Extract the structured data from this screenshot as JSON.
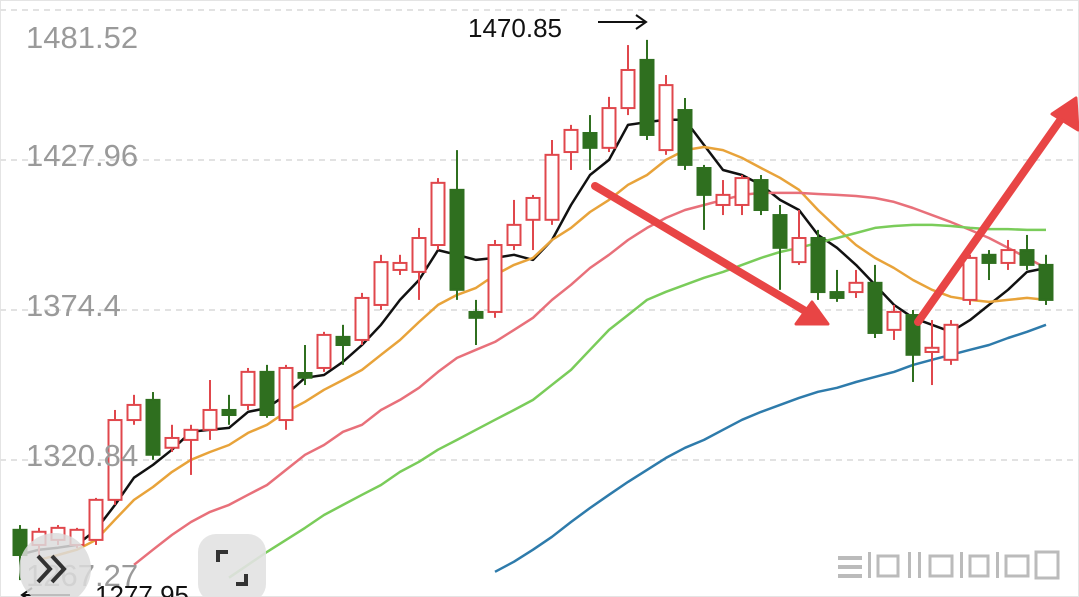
{
  "chart_data": {
    "type": "candlestick",
    "ylim": [
      1267.27,
      1481.52
    ],
    "yticks": [
      1481.52,
      1427.96,
      1374.4,
      1320.84,
      1267.27
    ],
    "grid": true,
    "series": [
      {
        "up_color": "#e0474c",
        "down_color": "#2f6f1f",
        "open": [
          1295.9,
          1290.5,
          1292.3,
          1290.5,
          1292.3,
          1306.6,
          1335.1,
          1342.3,
          1325.2,
          1328.0,
          1331.6,
          1338.7,
          1340.5,
          1352.3,
          1335.1,
          1351.9,
          1353.7,
          1364.8,
          1363.7,
          1376.2,
          1388.7,
          1388.0,
          1397.6,
          1417.3,
          1373.7,
          1373.7,
          1397.6,
          1406.6,
          1406.6,
          1430.8,
          1437.6,
          1432.3,
          1446.5,
          1463.7,
          1431.5,
          1445.8,
          1425.1,
          1411.9,
          1411.9,
          1420.8,
          1408.3,
          1391.5,
          1400.1,
          1380.8,
          1380.8,
          1384.1,
          1367.3,
          1372.6,
          1359.4,
          1356.6,
          1378.0,
          1394.1,
          1391.2,
          1395.8,
          1390.5
        ],
        "high": [
          1297.6,
          1296.6,
          1297.6,
          1296.6,
          1307.3,
          1338.7,
          1344.1,
          1345.1,
          1333.4,
          1333.4,
          1349.4,
          1344.1,
          1353.7,
          1354.8,
          1354.8,
          1361.9,
          1366.6,
          1369.1,
          1380.5,
          1394.1,
          1394.1,
          1403.7,
          1421.5,
          1431.5,
          1378.0,
          1399.4,
          1413.7,
          1415.5,
          1435.1,
          1440.5,
          1444.0,
          1450.5,
          1469.0,
          1470.85,
          1458.3,
          1450.1,
          1426.2,
          1420.8,
          1422.6,
          1422.6,
          1411.9,
          1410.1,
          1403.0,
          1388.7,
          1388.7,
          1390.5,
          1376.2,
          1374.4,
          1370.8,
          1370.8,
          1394.1,
          1395.8,
          1399.4,
          1401.2,
          1394.1
        ],
        "low": [
          1277.95,
          1285.2,
          1290.5,
          1289.4,
          1290.5,
          1304.8,
          1333.4,
          1320.9,
          1323.7,
          1315.5,
          1328.0,
          1333.4,
          1338.7,
          1335.9,
          1331.6,
          1347.6,
          1352.3,
          1354.8,
          1361.9,
          1374.4,
          1386.9,
          1378.0,
          1395.8,
          1378.0,
          1361.9,
          1371.6,
          1395.8,
          1395.8,
          1404.8,
          1424.4,
          1424.4,
          1430.8,
          1444.0,
          1435.1,
          1429.8,
          1424.4,
          1403.0,
          1408.3,
          1408.3,
          1408.3,
          1381.6,
          1390.5,
          1378.0,
          1377.3,
          1378.7,
          1364.4,
          1363.7,
          1348.7,
          1347.6,
          1354.8,
          1376.2,
          1385.1,
          1388.7,
          1388.7,
          1376.2
        ],
        "close": [
          1286.9,
          1295.2,
          1296.6,
          1295.9,
          1306.6,
          1335.1,
          1340.5,
          1322.7,
          1328.7,
          1331.6,
          1338.7,
          1336.9,
          1352.3,
          1336.9,
          1353.7,
          1350.2,
          1365.5,
          1361.9,
          1378.7,
          1391.5,
          1391.2,
          1400.1,
          1419.8,
          1381.6,
          1371.6,
          1397.6,
          1404.8,
          1414.4,
          1429.8,
          1438.7,
          1432.3,
          1446.5,
          1460.1,
          1436.9,
          1454.7,
          1426.2,
          1415.5,
          1415.5,
          1421.5,
          1410.1,
          1396.6,
          1400.1,
          1380.8,
          1378.7,
          1384.1,
          1366.2,
          1373.7,
          1358.4,
          1360.9,
          1369.1,
          1393.0,
          1391.2,
          1395.8,
          1390.5,
          1378.0
        ]
      }
    ],
    "lines": [
      {
        "color": "#111111",
        "values": [
          1287.0,
          1288.8,
          1289.5,
          1290.5,
          1295.9,
          1304.8,
          1314.5,
          1319.1,
          1324.5,
          1330.9,
          1331.6,
          1332.3,
          1338.0,
          1339.4,
          1344.1,
          1350.2,
          1351.2,
          1355.9,
          1361.9,
          1369.1,
          1378.0,
          1385.1,
          1395.8,
          1394.1,
          1392.3,
          1393.0,
          1394.1,
          1392.3,
          1399.4,
          1411.9,
          1422.6,
          1428.0,
          1440.5,
          1441.5,
          1442.3,
          1442.3,
          1433.3,
          1424.4,
          1422.6,
          1419.1,
          1413.7,
          1410.1,
          1401.2,
          1396.6,
          1390.5,
          1383.4,
          1376.2,
          1371.6,
          1369.1,
          1366.6,
          1370.8,
          1376.2,
          1381.6,
          1388.0,
          1389.4
        ]
      },
      {
        "color": "#e8a33a",
        "values": [
          null,
          1285.2,
          1286.9,
          1288.8,
          1292.3,
          1299.5,
          1306.6,
          1311.2,
          1316.6,
          1320.9,
          1323.7,
          1326.2,
          1330.5,
          1333.4,
          1338.0,
          1341.6,
          1345.9,
          1349.4,
          1353.0,
          1358.4,
          1363.7,
          1370.1,
          1376.2,
          1379.8,
          1382.3,
          1386.9,
          1390.5,
          1393.0,
          1399.4,
          1403.7,
          1409.4,
          1413.7,
          1419.1,
          1422.6,
          1428.0,
          1431.5,
          1432.6,
          1431.5,
          1428.7,
          1425.1,
          1421.6,
          1417.3,
          1410.1,
          1403.7,
          1397.6,
          1393.0,
          1389.4,
          1385.1,
          1381.6,
          1379.1,
          1378.0,
          1377.3,
          1378.0,
          1378.7,
          1378.0
        ]
      },
      {
        "color": "#e8707a",
        "values": [
          null,
          null,
          null,
          null,
          null,
          null,
          1283.4,
          1288.8,
          1294.1,
          1298.7,
          1302.3,
          1304.8,
          1308.4,
          1311.9,
          1317.3,
          1322.7,
          1326.2,
          1330.9,
          1333.4,
          1338.7,
          1342.3,
          1346.6,
          1352.3,
          1357.3,
          1360.2,
          1363.0,
          1367.3,
          1371.6,
          1378.0,
          1383.4,
          1389.4,
          1394.1,
          1399.4,
          1403.7,
          1407.3,
          1410.1,
          1411.9,
          1413.7,
          1415.5,
          1416.2,
          1416.2,
          1416.2,
          1415.8,
          1415.5,
          1415.1,
          1414.4,
          1413.0,
          1410.8,
          1408.3,
          1405.8,
          1403.0,
          1400.1,
          1396.6,
          1393.0,
          1389.4
        ]
      },
      {
        "color": "#7acc5a",
        "values": [
          null,
          null,
          null,
          null,
          null,
          null,
          null,
          null,
          null,
          null,
          null,
          1278.8,
          1283.4,
          1288.0,
          1292.3,
          1296.6,
          1301.2,
          1304.8,
          1308.4,
          1311.9,
          1316.6,
          1320.2,
          1324.5,
          1328.0,
          1331.6,
          1335.2,
          1338.7,
          1342.3,
          1347.7,
          1353.0,
          1360.2,
          1367.3,
          1372.6,
          1378.0,
          1380.9,
          1383.4,
          1385.9,
          1388.0,
          1390.5,
          1393.0,
          1395.1,
          1396.6,
          1398.4,
          1400.1,
          1401.9,
          1403.7,
          1404.4,
          1404.8,
          1404.8,
          1404.4,
          1403.7,
          1403.3,
          1403.3,
          1403.0,
          1403.0
        ]
      },
      {
        "color": "#2e7bab",
        "values": [
          null,
          null,
          null,
          null,
          null,
          null,
          null,
          null,
          null,
          null,
          null,
          null,
          null,
          null,
          null,
          null,
          null,
          null,
          null,
          null,
          null,
          null,
          null,
          null,
          null,
          1280.9,
          1284.5,
          1288.8,
          1293.4,
          1298.7,
          1303.7,
          1308.4,
          1313.0,
          1317.3,
          1321.6,
          1325.2,
          1328.0,
          1331.6,
          1335.2,
          1338.0,
          1340.5,
          1343.0,
          1345.2,
          1346.6,
          1348.7,
          1350.5,
          1352.3,
          1354.8,
          1356.6,
          1358.4,
          1360.2,
          1361.9,
          1364.4,
          1366.6,
          1369.1
        ]
      }
    ]
  }
}
